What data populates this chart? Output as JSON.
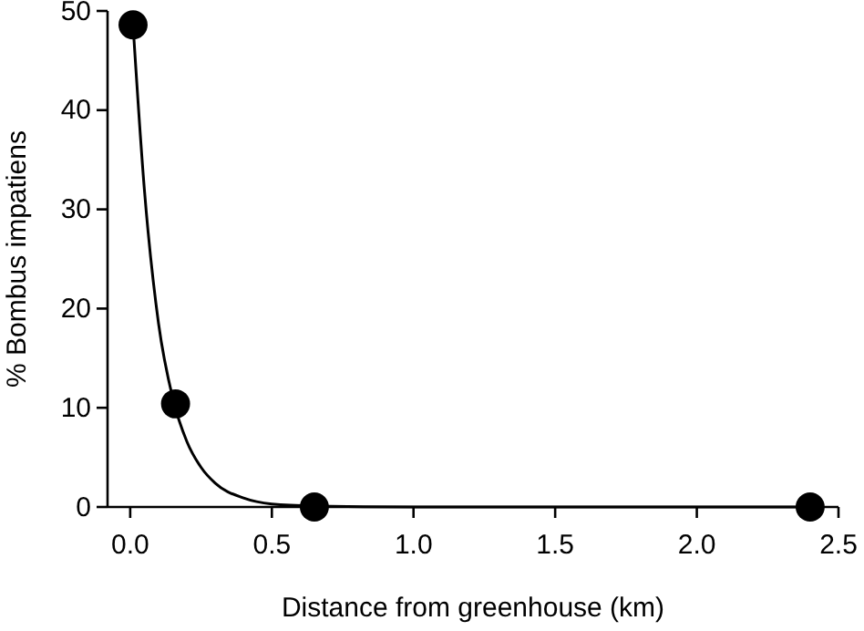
{
  "chart_data": {
    "type": "scatter",
    "xlabel": "Distance from greenhouse (km)",
    "ylabel": "% Bombus impatiens",
    "xlim": [
      -0.08,
      2.5
    ],
    "xticks": [
      {
        "value": 0,
        "label": "0.0"
      },
      {
        "value": 0.5,
        "label": "0.5"
      },
      {
        "value": 1,
        "label": "1.0"
      },
      {
        "value": 1.5,
        "label": "1.5"
      },
      {
        "value": 2,
        "label": "2.0"
      },
      {
        "value": 2.5,
        "label": "2.5"
      }
    ],
    "ylim": [
      0,
      50
    ],
    "yticks": [
      0,
      10,
      20,
      30,
      40,
      50
    ],
    "grid": false,
    "series": [
      {
        "color": "#000000",
        "marker": "circle",
        "x": [
          0.01,
          0.16,
          0.65,
          2.4
        ],
        "values": [
          48.6,
          10.4,
          0,
          0
        ]
      },
      {
        "type": "line",
        "color": "#000000",
        "marker": "none",
        "line_style": "solid",
        "x": [
          0.01,
          0.05,
          0.1,
          0.15,
          0.2,
          0.25,
          0.3,
          0.4,
          0.5,
          0.65,
          1.0,
          2.4
        ],
        "values": [
          48.6,
          32,
          18.5,
          11,
          6.6,
          4,
          2.4,
          0.9,
          0.3,
          0.1,
          0,
          0
        ]
      }
    ]
  }
}
